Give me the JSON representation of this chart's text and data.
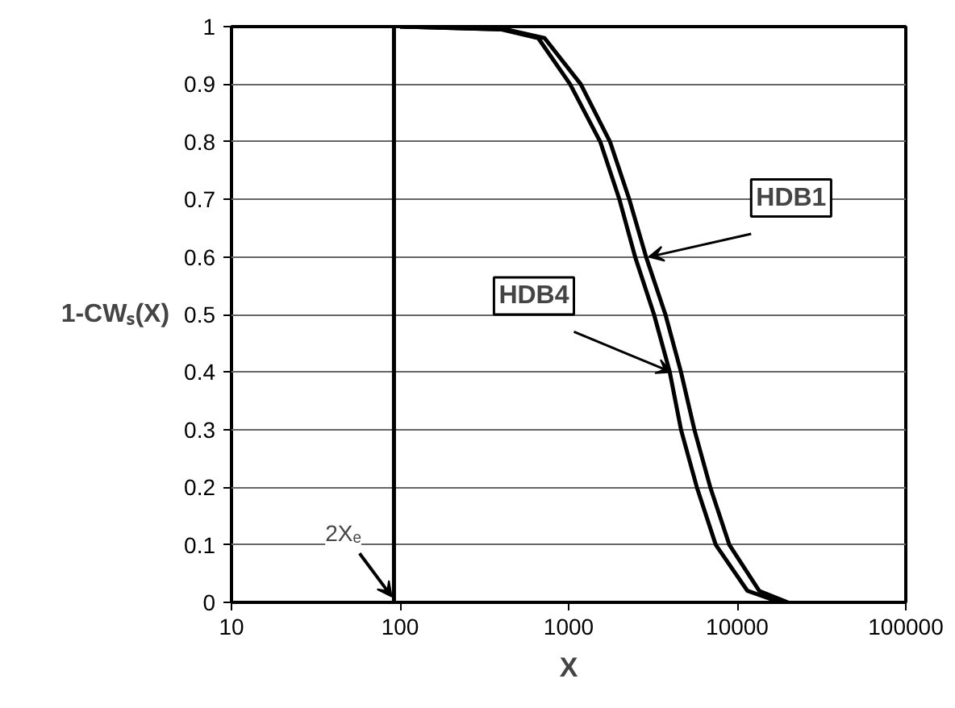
{
  "chart_data": {
    "type": "line",
    "xlabel": "X",
    "ylabel": "1-CWₛ(X)",
    "log": "x",
    "xlim": [
      10,
      100000
    ],
    "xticks": [
      10,
      100,
      1000,
      10000,
      100000
    ],
    "ylim": [
      0,
      1
    ],
    "yticks": [
      0,
      0.1,
      0.2,
      0.3,
      0.4,
      0.5,
      0.6,
      0.7,
      0.8,
      0.9,
      1
    ],
    "grid": "y",
    "series": [
      {
        "name": "HDB1",
        "color": "#000000",
        "x": [
          100,
          430,
          720,
          1180,
          1760,
          2290,
          2880,
          3750,
          4640,
          5570,
          6920,
          8980,
          13500,
          20000
        ],
        "values": [
          1,
          0.995,
          0.98,
          0.9,
          0.8,
          0.7,
          0.6,
          0.5,
          0.4,
          0.3,
          0.2,
          0.1,
          0.02,
          0
        ]
      },
      {
        "name": "HDB4",
        "color": "#000000",
        "x": [
          100,
          400,
          660,
          1020,
          1540,
          2000,
          2480,
          3210,
          3980,
          4640,
          5760,
          7460,
          11500,
          18000
        ],
        "values": [
          1,
          0.995,
          0.98,
          0.9,
          0.8,
          0.7,
          0.6,
          0.5,
          0.4,
          0.3,
          0.2,
          0.1,
          0.02,
          0
        ]
      }
    ],
    "ref_lines": [
      {
        "axis": "x",
        "value": 92,
        "label": "2Xₑ",
        "color": "#000000"
      }
    ]
  }
}
